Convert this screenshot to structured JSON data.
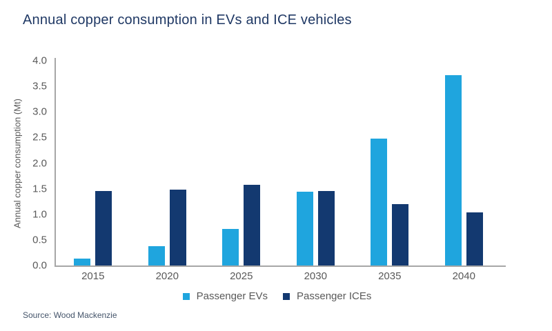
{
  "title": "Annual copper consumption in EVs and ICE vehicles",
  "source": "Source: Wood Mackenzie",
  "colors": {
    "title_text": "#1F3864",
    "axis_text": "#595959",
    "axis_line": "#A6A6A6",
    "source_text": "#44546A",
    "ev_bar": "#1FA5DE",
    "ice_bar": "#133970"
  },
  "chart_data": {
    "type": "bar",
    "title": "Annual copper consumption in EVs and ICE vehicles",
    "categories": [
      "2015",
      "2020",
      "2025",
      "2030",
      "2035",
      "2040"
    ],
    "series": [
      {
        "name": "Passenger EVs",
        "color": "#1FA5DE",
        "values": [
          0.13,
          0.38,
          0.72,
          1.44,
          2.48,
          3.72
        ]
      },
      {
        "name": "Passenger ICEs",
        "color": "#133970",
        "values": [
          1.45,
          1.48,
          1.57,
          1.45,
          1.2,
          1.04
        ]
      }
    ],
    "xlabel": "",
    "ylabel": "Annual copper consumption (Mt)",
    "ylim": [
      0,
      4.0
    ],
    "ytick_step": 0.5,
    "ytick_decimals": 1,
    "grid": false,
    "legend_position": "bottom"
  }
}
